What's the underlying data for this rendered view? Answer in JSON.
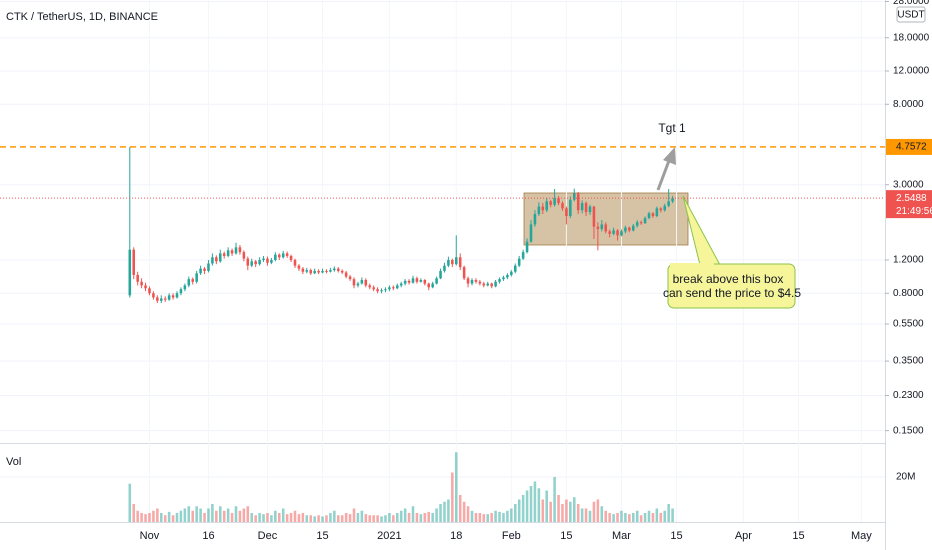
{
  "chart_data": {
    "type": "candlestick",
    "title": "CTK / TetherUS, 1D, BINANCE",
    "log_scale": true,
    "grid": true,
    "up_color": "#26a69a",
    "down_color": "#ef5350",
    "level": 4.7572,
    "level_color": "#ff9800",
    "countdown": "21:49:56",
    "currency": "USDT",
    "volume_label": "Vol",
    "annotations": {
      "target": "Tgt 1",
      "callout": [
        "break above this box",
        "can send the price to $4.5"
      ]
    },
    "xlim": [
      "2020-09-24",
      "2021-05-07"
    ],
    "xticks": [
      {
        "value": "2020-11-01",
        "label": "Nov"
      },
      {
        "value": "2020-11-16",
        "label": "16"
      },
      {
        "value": "2020-12-01",
        "label": "Dec"
      },
      {
        "value": "2020-12-15",
        "label": "15"
      },
      {
        "value": "2021-01-01",
        "label": "2021"
      },
      {
        "value": "2021-01-18",
        "label": "18"
      },
      {
        "value": "2021-02-01",
        "label": "Feb"
      },
      {
        "value": "2021-02-15",
        "label": "15"
      },
      {
        "value": "2021-03-01",
        "label": "Mar"
      },
      {
        "value": "2021-03-15",
        "label": "15"
      },
      {
        "value": "2021-04-01",
        "label": "Apr"
      },
      {
        "value": "2021-04-15",
        "label": "15"
      },
      {
        "value": "2021-05-01",
        "label": "May"
      }
    ],
    "ylim": [
      0.129,
      28.5
    ],
    "yticks": [
      {
        "value": 28,
        "label": "28.0000"
      },
      {
        "value": 18,
        "label": "18.0000"
      },
      {
        "value": 12,
        "label": "12.0000"
      },
      {
        "value": 8,
        "label": "8.0000"
      },
      {
        "value": 3,
        "label": "3.0000"
      },
      {
        "value": 1.2,
        "label": "1.2000"
      },
      {
        "value": 0.8,
        "label": "0.8000"
      },
      {
        "value": 0.55,
        "label": "0.5500"
      },
      {
        "value": 0.35,
        "label": "0.3500"
      },
      {
        "value": 0.23,
        "label": "0.2300"
      },
      {
        "value": 0.15,
        "label": "0.1500"
      }
    ],
    "vol_ylim": [
      0,
      32000000
    ],
    "vol_yticks": [
      {
        "value": 20000000,
        "label": "20M"
      }
    ],
    "x": [
      "2020-10-27",
      "2020-10-28",
      "2020-10-29",
      "2020-10-30",
      "2020-10-31",
      "2020-11-01",
      "2020-11-02",
      "2020-11-03",
      "2020-11-04",
      "2020-11-05",
      "2020-11-06",
      "2020-11-07",
      "2020-11-08",
      "2020-11-09",
      "2020-11-10",
      "2020-11-11",
      "2020-11-12",
      "2020-11-13",
      "2020-11-14",
      "2020-11-15",
      "2020-11-16",
      "2020-11-17",
      "2020-11-18",
      "2020-11-19",
      "2020-11-20",
      "2020-11-21",
      "2020-11-22",
      "2020-11-23",
      "2020-11-24",
      "2020-11-25",
      "2020-11-26",
      "2020-11-27",
      "2020-11-28",
      "2020-11-29",
      "2020-11-30",
      "2020-12-01",
      "2020-12-02",
      "2020-12-03",
      "2020-12-04",
      "2020-12-05",
      "2020-12-06",
      "2020-12-07",
      "2020-12-08",
      "2020-12-09",
      "2020-12-10",
      "2020-12-11",
      "2020-12-12",
      "2020-12-13",
      "2020-12-14",
      "2020-12-15",
      "2020-12-16",
      "2020-12-17",
      "2020-12-18",
      "2020-12-19",
      "2020-12-20",
      "2020-12-21",
      "2020-12-22",
      "2020-12-23",
      "2020-12-24",
      "2020-12-25",
      "2020-12-26",
      "2020-12-27",
      "2020-12-28",
      "2020-12-29",
      "2020-12-30",
      "2020-12-31",
      "2021-01-01",
      "2021-01-02",
      "2021-01-03",
      "2021-01-04",
      "2021-01-05",
      "2021-01-06",
      "2021-01-07",
      "2021-01-08",
      "2021-01-09",
      "2021-01-10",
      "2021-01-11",
      "2021-01-12",
      "2021-01-13",
      "2021-01-14",
      "2021-01-15",
      "2021-01-16",
      "2021-01-17",
      "2021-01-18",
      "2021-01-19",
      "2021-01-20",
      "2021-01-21",
      "2021-01-22",
      "2021-01-23",
      "2021-01-24",
      "2021-01-25",
      "2021-01-26",
      "2021-01-27",
      "2021-01-28",
      "2021-01-29",
      "2021-01-30",
      "2021-01-31",
      "2021-02-01",
      "2021-02-02",
      "2021-02-03",
      "2021-02-04",
      "2021-02-05",
      "2021-02-06",
      "2021-02-07",
      "2021-02-08",
      "2021-02-09",
      "2021-02-10",
      "2021-02-11",
      "2021-02-12",
      "2021-02-13",
      "2021-02-14",
      "2021-02-15",
      "2021-02-16",
      "2021-02-17",
      "2021-02-18",
      "2021-02-19",
      "2021-02-20",
      "2021-02-21",
      "2021-02-22",
      "2021-02-23",
      "2021-02-24",
      "2021-02-25",
      "2021-02-26",
      "2021-02-27",
      "2021-02-28",
      "2021-03-01",
      "2021-03-02",
      "2021-03-03",
      "2021-03-04",
      "2021-03-05",
      "2021-03-06",
      "2021-03-07",
      "2021-03-08",
      "2021-03-09",
      "2021-03-10",
      "2021-03-11",
      "2021-03-12",
      "2021-03-13",
      "2021-03-14"
    ],
    "ohlc": [
      [
        0.78,
        4.7572,
        0.76,
        1.36
      ],
      [
        1.36,
        1.4,
        0.95,
        1.0
      ],
      [
        1.0,
        1.04,
        0.88,
        0.92
      ],
      [
        0.92,
        0.96,
        0.85,
        0.88
      ],
      [
        0.88,
        0.91,
        0.82,
        0.85
      ],
      [
        0.85,
        0.87,
        0.78,
        0.8
      ],
      [
        0.8,
        0.82,
        0.74,
        0.76
      ],
      [
        0.76,
        0.78,
        0.71,
        0.73
      ],
      [
        0.73,
        0.78,
        0.71,
        0.75
      ],
      [
        0.75,
        0.77,
        0.72,
        0.74
      ],
      [
        0.74,
        0.8,
        0.73,
        0.78
      ],
      [
        0.78,
        0.8,
        0.74,
        0.76
      ],
      [
        0.76,
        0.82,
        0.75,
        0.8
      ],
      [
        0.8,
        0.86,
        0.78,
        0.84
      ],
      [
        0.84,
        0.9,
        0.82,
        0.88
      ],
      [
        0.88,
        0.98,
        0.86,
        0.95
      ],
      [
        0.95,
        0.97,
        0.89,
        0.92
      ],
      [
        0.92,
        1.05,
        0.9,
        1.02
      ],
      [
        1.02,
        1.12,
        1.0,
        1.08
      ],
      [
        1.08,
        1.1,
        1.01,
        1.05
      ],
      [
        1.05,
        1.2,
        1.03,
        1.15
      ],
      [
        1.15,
        1.3,
        1.12,
        1.24
      ],
      [
        1.24,
        1.27,
        1.14,
        1.18
      ],
      [
        1.18,
        1.36,
        1.16,
        1.3
      ],
      [
        1.3,
        1.33,
        1.22,
        1.26
      ],
      [
        1.26,
        1.4,
        1.24,
        1.35
      ],
      [
        1.35,
        1.38,
        1.26,
        1.3
      ],
      [
        1.3,
        1.48,
        1.28,
        1.4
      ],
      [
        1.4,
        1.44,
        1.28,
        1.32
      ],
      [
        1.32,
        1.35,
        1.18,
        1.22
      ],
      [
        1.22,
        1.25,
        1.06,
        1.12
      ],
      [
        1.12,
        1.22,
        1.1,
        1.18
      ],
      [
        1.18,
        1.2,
        1.1,
        1.14
      ],
      [
        1.14,
        1.24,
        1.12,
        1.2
      ],
      [
        1.2,
        1.26,
        1.17,
        1.22
      ],
      [
        1.22,
        1.25,
        1.12,
        1.16
      ],
      [
        1.16,
        1.23,
        1.14,
        1.2
      ],
      [
        1.2,
        1.32,
        1.18,
        1.28
      ],
      [
        1.28,
        1.3,
        1.2,
        1.24
      ],
      [
        1.24,
        1.34,
        1.22,
        1.3
      ],
      [
        1.3,
        1.33,
        1.23,
        1.26
      ],
      [
        1.26,
        1.28,
        1.17,
        1.2
      ],
      [
        1.2,
        1.22,
        1.09,
        1.12
      ],
      [
        1.12,
        1.14,
        1.05,
        1.08
      ],
      [
        1.08,
        1.1,
        1.01,
        1.04
      ],
      [
        1.04,
        1.09,
        1.02,
        1.06
      ],
      [
        1.06,
        1.08,
        1.0,
        1.02
      ],
      [
        1.02,
        1.08,
        1.01,
        1.05
      ],
      [
        1.05,
        1.07,
        1.01,
        1.03
      ],
      [
        1.03,
        1.08,
        1.02,
        1.05
      ],
      [
        1.05,
        1.07,
        1.02,
        1.04
      ],
      [
        1.04,
        1.09,
        1.03,
        1.06
      ],
      [
        1.06,
        1.11,
        1.04,
        1.08
      ],
      [
        1.08,
        1.1,
        1.03,
        1.05
      ],
      [
        1.05,
        1.07,
        1.01,
        1.03
      ],
      [
        1.03,
        1.05,
        0.96,
        0.98
      ],
      [
        0.98,
        1.0,
        0.93,
        0.95
      ],
      [
        0.95,
        0.97,
        0.85,
        0.88
      ],
      [
        0.88,
        0.92,
        0.86,
        0.9
      ],
      [
        0.9,
        0.97,
        0.89,
        0.94
      ],
      [
        0.94,
        0.96,
        0.86,
        0.88
      ],
      [
        0.88,
        0.9,
        0.84,
        0.86
      ],
      [
        0.86,
        0.88,
        0.82,
        0.84
      ],
      [
        0.84,
        0.86,
        0.8,
        0.82
      ],
      [
        0.82,
        0.85,
        0.8,
        0.83
      ],
      [
        0.83,
        0.86,
        0.81,
        0.84
      ],
      [
        0.84,
        0.88,
        0.82,
        0.86
      ],
      [
        0.86,
        0.88,
        0.83,
        0.85
      ],
      [
        0.85,
        0.9,
        0.84,
        0.88
      ],
      [
        0.88,
        0.92,
        0.86,
        0.9
      ],
      [
        0.9,
        0.95,
        0.88,
        0.93
      ],
      [
        0.93,
        0.95,
        0.89,
        0.91
      ],
      [
        0.91,
        0.99,
        0.9,
        0.96
      ],
      [
        0.96,
        0.98,
        0.9,
        0.92
      ],
      [
        0.92,
        0.96,
        0.91,
        0.94
      ],
      [
        0.94,
        0.95,
        0.88,
        0.9
      ],
      [
        0.9,
        0.91,
        0.83,
        0.86
      ],
      [
        0.86,
        0.92,
        0.85,
        0.9
      ],
      [
        0.9,
        0.98,
        0.89,
        0.96
      ],
      [
        0.96,
        1.08,
        0.95,
        1.05
      ],
      [
        1.05,
        1.16,
        1.03,
        1.12
      ],
      [
        1.12,
        1.25,
        1.1,
        1.2
      ],
      [
        1.2,
        1.22,
        1.1,
        1.14
      ],
      [
        1.14,
        1.62,
        1.12,
        1.24
      ],
      [
        1.24,
        1.3,
        1.06,
        1.1
      ],
      [
        1.1,
        1.12,
        0.94,
        0.96
      ],
      [
        0.96,
        0.98,
        0.86,
        0.9
      ],
      [
        0.9,
        0.96,
        0.88,
        0.94
      ],
      [
        0.94,
        0.96,
        0.9,
        0.92
      ],
      [
        0.92,
        0.94,
        0.88,
        0.9
      ],
      [
        0.9,
        0.92,
        0.86,
        0.88
      ],
      [
        0.88,
        0.92,
        0.87,
        0.9
      ],
      [
        0.9,
        0.91,
        0.85,
        0.87
      ],
      [
        0.87,
        0.94,
        0.86,
        0.92
      ],
      [
        0.92,
        0.97,
        0.9,
        0.95
      ],
      [
        0.95,
        0.99,
        0.93,
        0.97
      ],
      [
        0.97,
        1.02,
        0.95,
        1.0
      ],
      [
        1.0,
        1.06,
        0.98,
        1.04
      ],
      [
        1.04,
        1.15,
        1.02,
        1.12
      ],
      [
        1.12,
        1.26,
        1.1,
        1.22
      ],
      [
        1.22,
        1.36,
        1.2,
        1.32
      ],
      [
        1.32,
        1.56,
        1.3,
        1.5
      ],
      [
        1.5,
        1.95,
        1.48,
        1.85
      ],
      [
        1.85,
        2.2,
        1.8,
        2.1
      ],
      [
        2.1,
        2.42,
        2.05,
        2.3
      ],
      [
        2.3,
        2.4,
        2.1,
        2.2
      ],
      [
        2.2,
        2.55,
        2.15,
        2.45
      ],
      [
        2.45,
        2.5,
        2.28,
        2.35
      ],
      [
        2.35,
        2.85,
        2.3,
        2.55
      ],
      [
        2.55,
        2.62,
        2.34,
        2.4
      ],
      [
        2.4,
        2.45,
        2.18,
        2.25
      ],
      [
        2.25,
        2.3,
        1.85,
        2.05
      ],
      [
        2.05,
        2.6,
        2.0,
        2.5
      ],
      [
        2.5,
        2.86,
        2.45,
        2.7
      ],
      [
        2.7,
        2.75,
        2.1,
        2.2
      ],
      [
        2.2,
        2.48,
        2.12,
        2.4
      ],
      [
        2.4,
        2.45,
        2.05,
        2.15
      ],
      [
        2.15,
        2.35,
        2.08,
        2.3
      ],
      [
        2.3,
        2.32,
        1.55,
        1.8
      ],
      [
        1.8,
        1.9,
        1.35,
        1.75
      ],
      [
        1.75,
        1.95,
        1.7,
        1.85
      ],
      [
        1.85,
        1.9,
        1.66,
        1.7
      ],
      [
        1.7,
        1.74,
        1.58,
        1.65
      ],
      [
        1.65,
        1.78,
        1.62,
        1.72
      ],
      [
        1.72,
        1.75,
        1.52,
        1.62
      ],
      [
        1.62,
        1.74,
        1.6,
        1.7
      ],
      [
        1.7,
        1.82,
        1.66,
        1.78
      ],
      [
        1.78,
        1.8,
        1.68,
        1.72
      ],
      [
        1.72,
        1.86,
        1.7,
        1.82
      ],
      [
        1.82,
        1.95,
        1.78,
        1.9
      ],
      [
        1.9,
        1.94,
        1.84,
        1.88
      ],
      [
        1.88,
        2.04,
        1.86,
        2.0
      ],
      [
        2.0,
        2.16,
        1.97,
        2.12
      ],
      [
        2.12,
        2.15,
        2.0,
        2.05
      ],
      [
        2.05,
        2.3,
        2.02,
        2.25
      ],
      [
        2.25,
        2.28,
        2.14,
        2.2
      ],
      [
        2.2,
        2.38,
        2.16,
        2.32
      ],
      [
        2.32,
        2.85,
        2.28,
        2.45
      ],
      [
        2.45,
        2.62,
        2.4,
        2.5488
      ]
    ],
    "volume": [
      17000000,
      8000000,
      5000000,
      4000000,
      3500000,
      4000000,
      5000000,
      6000000,
      4000000,
      3000000,
      4500000,
      3000000,
      4000000,
      5000000,
      6000000,
      7000000,
      5000000,
      7000000,
      6000000,
      4000000,
      6000000,
      8000000,
      5000000,
      7000000,
      5000000,
      6000000,
      4000000,
      7000000,
      5000000,
      6000000,
      7000000,
      4000000,
      3000000,
      4000000,
      3500000,
      4000000,
      3000000,
      5000000,
      4000000,
      6000000,
      3500000,
      4000000,
      5000000,
      3500000,
      4000000,
      3000000,
      3000000,
      2500000,
      3000000,
      2500000,
      3000000,
      4000000,
      5000000,
      3000000,
      3000000,
      4000000,
      3500000,
      6000000,
      4000000,
      5000000,
      3500000,
      3000000,
      3000000,
      3000000,
      2500000,
      3000000,
      4000000,
      3000000,
      4000000,
      5000000,
      6000000,
      4000000,
      7000000,
      4000000,
      3500000,
      4000000,
      4500000,
      4000000,
      6000000,
      8000000,
      9000000,
      10000000,
      22000000,
      31000000,
      12000000,
      9000000,
      7000000,
      5000000,
      4000000,
      4000000,
      3500000,
      3500000,
      4000000,
      5000000,
      4500000,
      4000000,
      5000000,
      6000000,
      8000000,
      10000000,
      12000000,
      14000000,
      16000000,
      18000000,
      15000000,
      10000000,
      14000000,
      9000000,
      20000000,
      12000000,
      8000000,
      10000000,
      9000000,
      11000000,
      8000000,
      6000000,
      6000000,
      5000000,
      9000000,
      10000000,
      7000000,
      5000000,
      4000000,
      3500000,
      4000000,
      5000000,
      4000000,
      3500000,
      4000000,
      5000000,
      3000000,
      4000000,
      5000000,
      4000000,
      6000000,
      4000000,
      5000000,
      8000000,
      6000000
    ]
  }
}
